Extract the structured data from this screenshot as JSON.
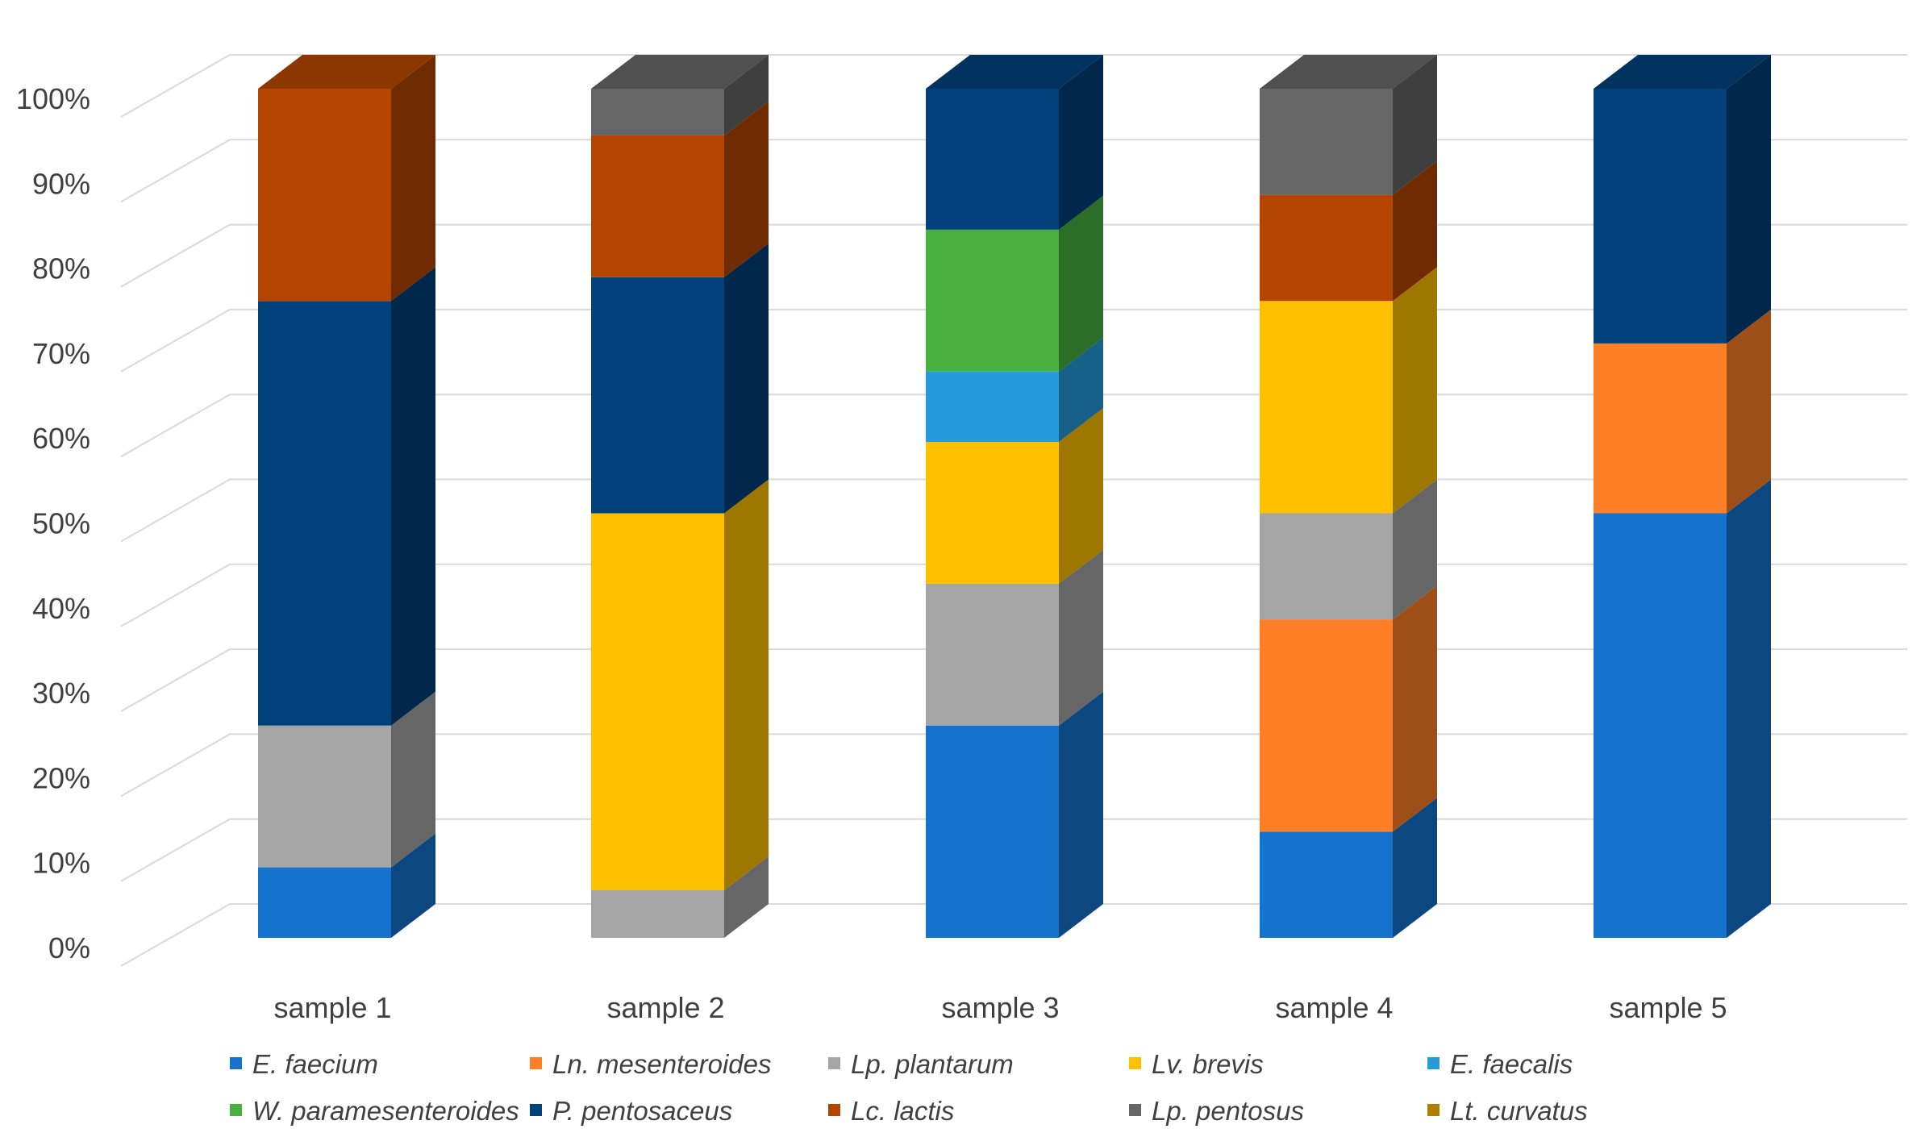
{
  "chart_data": {
    "type": "bar",
    "stacked": true,
    "style": "3d-column-100-percent",
    "title": "",
    "xlabel": "",
    "ylabel": "",
    "ylim": [
      0,
      100
    ],
    "y_ticks": [
      "0%",
      "10%",
      "20%",
      "30%",
      "40%",
      "50%",
      "60%",
      "70%",
      "80%",
      "90%",
      "100%"
    ],
    "grid": true,
    "legend_position": "bottom",
    "categories": [
      "sample 1",
      "sample 2",
      "sample 3",
      "sample 4",
      "sample 5"
    ],
    "series": [
      {
        "name": "E. faecium",
        "color": "#1572CD",
        "values": [
          8.3,
          0,
          25,
          12.5,
          50
        ]
      },
      {
        "name": "Ln. mesenteroides",
        "color": "#FF7F26",
        "values": [
          0,
          0,
          0,
          25,
          20
        ]
      },
      {
        "name": "Lp. plantarum",
        "color": "#A5A5A5",
        "values": [
          16.7,
          5.6,
          16.7,
          12.5,
          0
        ]
      },
      {
        "name": "Lv. brevis",
        "color": "#FFC000",
        "values": [
          0,
          44.4,
          16.7,
          25,
          0
        ]
      },
      {
        "name": "E. faecalis",
        "color": "#259BDB",
        "values": [
          0,
          0,
          8.3,
          0,
          0
        ]
      },
      {
        "name": "W. paramesenteroides",
        "color": "#47B03F",
        "values": [
          0,
          0,
          16.7,
          0,
          0
        ]
      },
      {
        "name": "P. pentosaceus",
        "color": "#02417B",
        "values": [
          50,
          27.8,
          16.6,
          0,
          30
        ]
      },
      {
        "name": "Lc. lactis",
        "color": "#B44500",
        "values": [
          25,
          16.7,
          0,
          12.5,
          0
        ]
      },
      {
        "name": "Lp. pentosus",
        "color": "#666666",
        "values": [
          0,
          5.5,
          0,
          12.5,
          0
        ]
      },
      {
        "name": "Lt. curvatus",
        "color": "#B17F00",
        "values": [
          0,
          0,
          0,
          0,
          0
        ]
      }
    ]
  }
}
